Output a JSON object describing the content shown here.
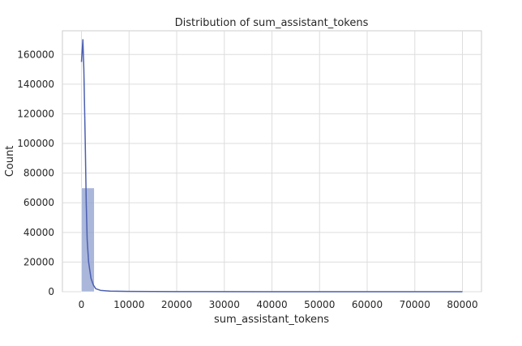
{
  "chart_data": {
    "type": "histogram",
    "title": "Distribution of sum_assistant_tokens",
    "xlabel": "sum_assistant_tokens",
    "ylabel": "Count",
    "xlim": [
      -4000,
      84000
    ],
    "ylim": [
      0,
      176000
    ],
    "xticks": [
      0,
      10000,
      20000,
      30000,
      40000,
      50000,
      60000,
      70000,
      80000
    ],
    "yticks": [
      0,
      20000,
      40000,
      60000,
      80000,
      100000,
      120000,
      140000,
      160000
    ],
    "grid": true,
    "bar_color": "#8e9fcf",
    "kde_color": "#4c5fb0",
    "bins": [
      {
        "x0": 0,
        "x1": 2700,
        "count": 70000
      },
      {
        "x0": 2700,
        "x1": 5400,
        "count": 300
      },
      {
        "x0": 5400,
        "x1": 8100,
        "count": 80
      },
      {
        "x0": 8100,
        "x1": 10800,
        "count": 40
      },
      {
        "x0": 10800,
        "x1": 13500,
        "count": 20
      },
      {
        "x0": 13500,
        "x1": 16200,
        "count": 10
      }
    ],
    "kde": {
      "x": [
        0,
        300,
        500,
        800,
        1000,
        1200,
        1500,
        2000,
        2500,
        3000,
        4000,
        6000,
        10000,
        20000,
        40000,
        80000
      ],
      "y": [
        155000,
        170000,
        150000,
        100000,
        60000,
        35000,
        20000,
        9000,
        4500,
        2000,
        900,
        400,
        200,
        80,
        20,
        0
      ]
    }
  }
}
